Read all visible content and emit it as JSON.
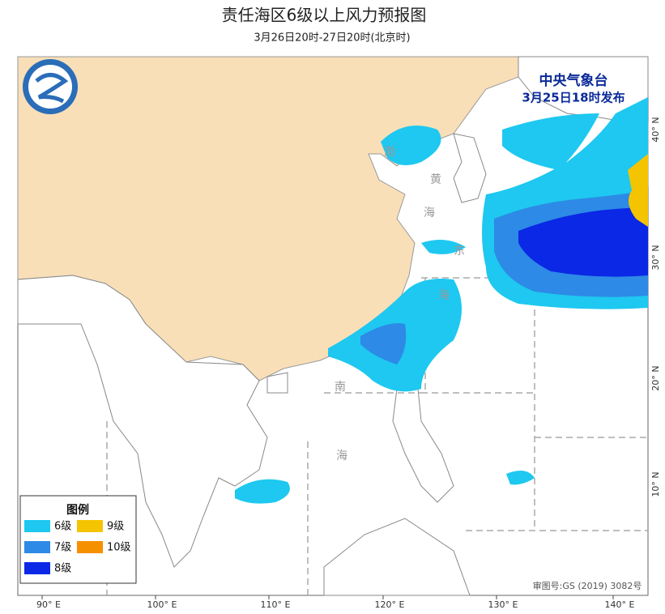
{
  "header": {
    "title": "责任海区6级以上风力预报图",
    "subtitle": "3月26日20时-27日20时(北京时)"
  },
  "issuer": {
    "name": "中央气象台",
    "time": "3月25日18时发布"
  },
  "legend": {
    "title": "图例",
    "items": [
      {
        "label": "6级",
        "color": "#1ec8f0"
      },
      {
        "label": "9级",
        "color": "#f5c400"
      },
      {
        "label": "7级",
        "color": "#2d8ae6"
      },
      {
        "label": "10级",
        "color": "#f59000"
      },
      {
        "label": "8级",
        "color": "#0a28e6"
      }
    ]
  },
  "lon_labels": [
    "90° E",
    "100° E",
    "110° E",
    "120° E",
    "130° E",
    "140° E"
  ],
  "lat_labels": [
    "40° N",
    "30° N",
    "20° N",
    "10° N"
  ],
  "sea_labels": [
    "渤",
    "黄",
    "海",
    "东",
    "海",
    "南",
    "海"
  ],
  "approval": "审图号:GS (2019) 3082号"
}
